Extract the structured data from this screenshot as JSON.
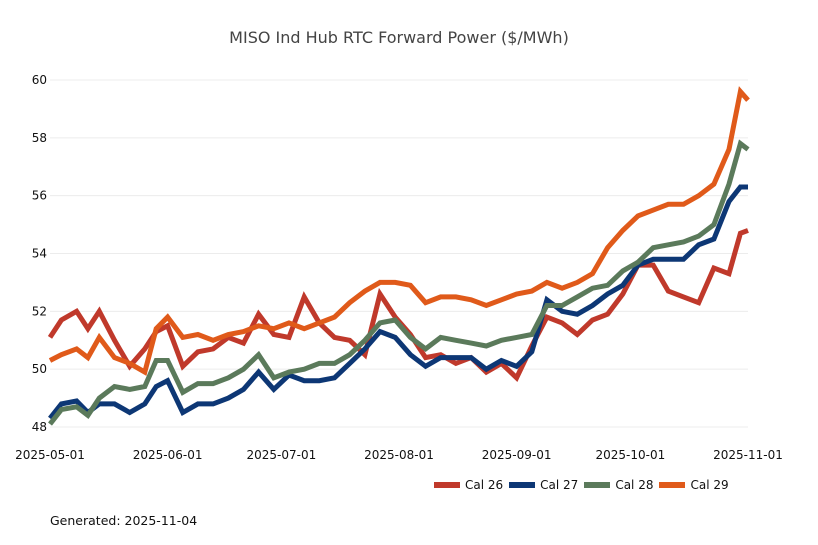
{
  "chart_data": {
    "type": "line",
    "title": "MISO Ind Hub RTC Forward Power ($/MWh)",
    "xlabel": "",
    "ylabel": "",
    "ylim": [
      48,
      60
    ],
    "xlim": [
      "2025-05-01",
      "2025-11-01"
    ],
    "grid": true,
    "legend_position": "bottom-right",
    "y_ticks": [
      "48",
      "50",
      "52",
      "54",
      "56",
      "58",
      "60"
    ],
    "x_ticks": [
      "2025-05-01",
      "2025-06-01",
      "2025-07-01",
      "2025-08-01",
      "2025-09-01",
      "2025-10-01",
      "2025-11-01"
    ],
    "x": [
      "2025-05-01",
      "2025-05-04",
      "2025-05-08",
      "2025-05-11",
      "2025-05-14",
      "2025-05-18",
      "2025-05-22",
      "2025-05-26",
      "2025-05-29",
      "2025-06-01",
      "2025-06-05",
      "2025-06-09",
      "2025-06-13",
      "2025-06-17",
      "2025-06-21",
      "2025-06-25",
      "2025-06-29",
      "2025-07-03",
      "2025-07-07",
      "2025-07-11",
      "2025-07-15",
      "2025-07-19",
      "2025-07-23",
      "2025-07-27",
      "2025-07-31",
      "2025-08-04",
      "2025-08-08",
      "2025-08-12",
      "2025-08-16",
      "2025-08-20",
      "2025-08-24",
      "2025-08-28",
      "2025-09-01",
      "2025-09-05",
      "2025-09-09",
      "2025-09-13",
      "2025-09-17",
      "2025-09-21",
      "2025-09-25",
      "2025-09-29",
      "2025-10-03",
      "2025-10-07",
      "2025-10-11",
      "2025-10-15",
      "2025-10-19",
      "2025-10-23",
      "2025-10-27",
      "2025-10-30",
      "2025-11-01"
    ],
    "series": [
      {
        "name": "Cal 26",
        "color": "#c0392b",
        "values": [
          51.1,
          51.7,
          52.0,
          51.4,
          52.0,
          51.0,
          50.1,
          50.7,
          51.3,
          51.5,
          50.1,
          50.6,
          50.7,
          51.1,
          50.9,
          51.9,
          51.2,
          51.1,
          52.5,
          51.6,
          51.1,
          51.0,
          50.5,
          52.6,
          51.8,
          51.2,
          50.4,
          50.5,
          50.2,
          50.4,
          49.9,
          50.2,
          49.7,
          50.8,
          51.8,
          51.6,
          51.2,
          51.7,
          51.9,
          52.6,
          53.6,
          53.6,
          52.7,
          52.5,
          52.3,
          53.5,
          53.3,
          54.7,
          54.8
        ]
      },
      {
        "name": "Cal 27",
        "color": "#0d3775",
        "values": [
          48.3,
          48.8,
          48.9,
          48.5,
          48.8,
          48.8,
          48.5,
          48.8,
          49.4,
          49.6,
          48.5,
          48.8,
          48.8,
          49.0,
          49.3,
          49.9,
          49.3,
          49.8,
          49.6,
          49.6,
          49.7,
          50.2,
          50.7,
          51.3,
          51.1,
          50.5,
          50.1,
          50.4,
          50.4,
          50.4,
          50.0,
          50.3,
          50.1,
          50.6,
          52.4,
          52.0,
          51.9,
          52.2,
          52.6,
          52.9,
          53.6,
          53.8,
          53.8,
          53.8,
          54.3,
          54.5,
          55.8,
          56.3,
          56.3
        ]
      },
      {
        "name": "Cal 28",
        "color": "#5b7a5b",
        "values": [
          48.1,
          48.6,
          48.7,
          48.4,
          49.0,
          49.4,
          49.3,
          49.4,
          50.3,
          50.3,
          49.2,
          49.5,
          49.5,
          49.7,
          50.0,
          50.5,
          49.7,
          49.9,
          50.0,
          50.2,
          50.2,
          50.5,
          51.0,
          51.6,
          51.7,
          51.1,
          50.7,
          51.1,
          51.0,
          50.9,
          50.8,
          51.0,
          51.1,
          51.2,
          52.2,
          52.2,
          52.5,
          52.8,
          52.9,
          53.4,
          53.7,
          54.2,
          54.3,
          54.4,
          54.6,
          55.0,
          56.4,
          57.8,
          57.6
        ]
      },
      {
        "name": "Cal 29",
        "color": "#e05a1a",
        "values": [
          50.3,
          50.5,
          50.7,
          50.4,
          51.1,
          50.4,
          50.2,
          49.9,
          51.4,
          51.8,
          51.1,
          51.2,
          51.0,
          51.2,
          51.3,
          51.5,
          51.4,
          51.6,
          51.4,
          51.6,
          51.8,
          52.3,
          52.7,
          53.0,
          53.0,
          52.9,
          52.3,
          52.5,
          52.5,
          52.4,
          52.2,
          52.4,
          52.6,
          52.7,
          53.0,
          52.8,
          53.0,
          53.3,
          54.2,
          54.8,
          55.3,
          55.5,
          55.7,
          55.7,
          56.0,
          56.4,
          57.6,
          59.6,
          59.3
        ]
      }
    ]
  },
  "footer": {
    "generated_text": "Generated: 2025-11-04"
  }
}
